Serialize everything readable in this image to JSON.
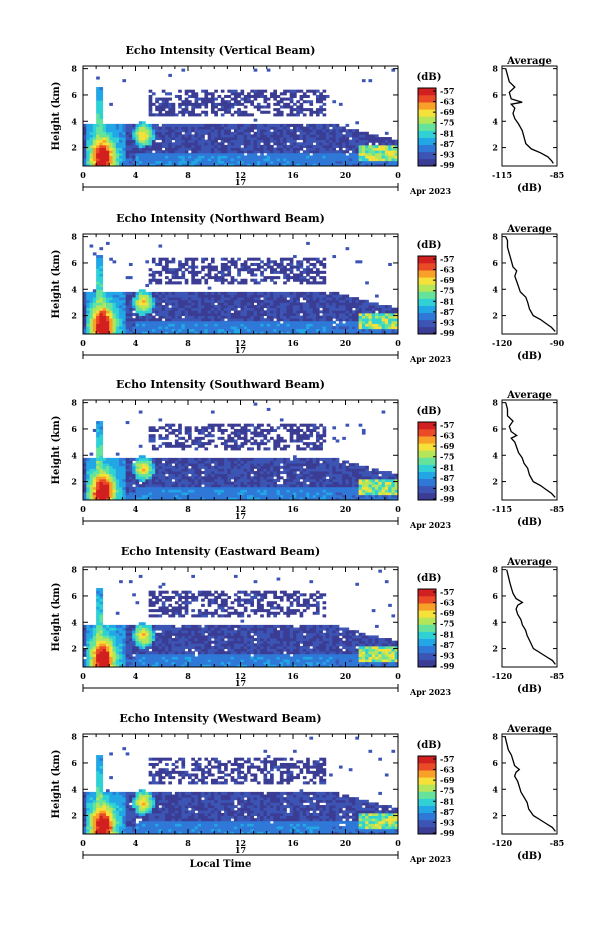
{
  "colors": {
    "colormap": [
      "#3b3c94",
      "#3c55b4",
      "#2f78d8",
      "#22a6e6",
      "#2fd1d5",
      "#66e39a",
      "#b5e65a",
      "#f5e13a",
      "#f8a028",
      "#ea4a26",
      "#d21f1f"
    ],
    "axis": "#000000"
  },
  "chart_data": [
    {
      "type": "heatmap",
      "title": "Echo Intensity (Vertical Beam)",
      "ylabel": "Height (km)",
      "xlabel": "",
      "x_ticks": [
        "0",
        "4",
        "8",
        "12",
        "16",
        "20",
        "0"
      ],
      "y_ticks": [
        "2",
        "4",
        "6",
        "8"
      ],
      "xlim": [
        0,
        24
      ],
      "ylim": [
        0.6,
        8.2
      ],
      "date_label": "17",
      "date_suffix": "Apr 2023",
      "colorbar": {
        "unit": "(dB)",
        "ticks": [
          "-57",
          "-63",
          "-69",
          "-75",
          "-81",
          "-87",
          "-93",
          "-99"
        ]
      },
      "profile": {
        "title": "Average",
        "xlabel": "(dB)",
        "x_ticks": [
          "-115",
          "-85"
        ],
        "xlim": [
          -115,
          -85
        ],
        "y_ticks": [
          "2",
          "4",
          "6",
          "8"
        ],
        "ylim": [
          0.6,
          8.2
        ],
        "points": [
          [
            -87,
            0.8
          ],
          [
            -88,
            1.0
          ],
          [
            -90,
            1.3
          ],
          [
            -94,
            1.6
          ],
          [
            -99,
            1.9
          ],
          [
            -102,
            2.3
          ],
          [
            -103,
            2.8
          ],
          [
            -104,
            3.3
          ],
          [
            -106,
            3.8
          ],
          [
            -108,
            4.2
          ],
          [
            -109,
            4.6
          ],
          [
            -108,
            5.0
          ],
          [
            -110,
            5.3
          ],
          [
            -104,
            5.45
          ],
          [
            -110,
            5.7
          ],
          [
            -111,
            6.2
          ],
          [
            -108,
            6.6
          ],
          [
            -111,
            7.0
          ],
          [
            -112,
            7.5
          ],
          [
            -113,
            8.0
          ]
        ]
      }
    },
    {
      "type": "heatmap",
      "title": "Echo Intensity (Northward Beam)",
      "ylabel": "Height (km)",
      "xlabel": "",
      "x_ticks": [
        "0",
        "4",
        "8",
        "12",
        "16",
        "20",
        "0"
      ],
      "y_ticks": [
        "2",
        "4",
        "6",
        "8"
      ],
      "xlim": [
        0,
        24
      ],
      "ylim": [
        0.6,
        8.2
      ],
      "date_label": "17",
      "date_suffix": "Apr 2023",
      "colorbar": {
        "unit": "(dB)",
        "ticks": [
          "-57",
          "-63",
          "-69",
          "-75",
          "-81",
          "-87",
          "-93",
          "-99"
        ]
      },
      "profile": {
        "title": "Average",
        "xlabel": "(dB)",
        "x_ticks": [
          "-120",
          "-90"
        ],
        "xlim": [
          -120,
          -90
        ],
        "y_ticks": [
          "2",
          "4",
          "6",
          "8"
        ],
        "ylim": [
          0.6,
          8.2
        ],
        "points": [
          [
            -91,
            0.8
          ],
          [
            -93,
            1.1
          ],
          [
            -96,
            1.4
          ],
          [
            -99,
            1.7
          ],
          [
            -103,
            2.0
          ],
          [
            -105,
            2.5
          ],
          [
            -106,
            3.0
          ],
          [
            -107,
            3.4
          ],
          [
            -110,
            3.8
          ],
          [
            -111,
            4.2
          ],
          [
            -112,
            4.6
          ],
          [
            -113,
            5.0
          ],
          [
            -112,
            5.4
          ],
          [
            -114,
            5.7
          ],
          [
            -115,
            6.2
          ],
          [
            -116,
            6.7
          ],
          [
            -117,
            7.2
          ],
          [
            -117,
            7.7
          ],
          [
            -118,
            8.0
          ]
        ]
      }
    },
    {
      "type": "heatmap",
      "title": "Echo Intensity (Southward Beam)",
      "ylabel": "Height (km)",
      "xlabel": "",
      "x_ticks": [
        "0",
        "4",
        "8",
        "12",
        "16",
        "20",
        "0"
      ],
      "y_ticks": [
        "2",
        "4",
        "6",
        "8"
      ],
      "xlim": [
        0,
        24
      ],
      "ylim": [
        0.6,
        8.2
      ],
      "date_label": "17",
      "date_suffix": "Apr 2023",
      "colorbar": {
        "unit": "(dB)",
        "ticks": [
          "-57",
          "-63",
          "-69",
          "-75",
          "-81",
          "-87",
          "-93",
          "-99"
        ]
      },
      "profile": {
        "title": "Average",
        "xlabel": "(dB)",
        "x_ticks": [
          "-115",
          "-85"
        ],
        "xlim": [
          -115,
          -85
        ],
        "y_ticks": [
          "2",
          "4",
          "6",
          "8"
        ],
        "ylim": [
          0.6,
          8.2
        ],
        "points": [
          [
            -86,
            0.8
          ],
          [
            -88,
            1.1
          ],
          [
            -91,
            1.4
          ],
          [
            -94,
            1.7
          ],
          [
            -98,
            2.0
          ],
          [
            -100,
            2.5
          ],
          [
            -101,
            3.0
          ],
          [
            -103,
            3.4
          ],
          [
            -104,
            3.8
          ],
          [
            -106,
            4.2
          ],
          [
            -107,
            4.6
          ],
          [
            -108,
            5.0
          ],
          [
            -110,
            5.3
          ],
          [
            -107,
            5.5
          ],
          [
            -110,
            5.8
          ],
          [
            -111,
            6.2
          ],
          [
            -109,
            6.6
          ],
          [
            -112,
            7.0
          ],
          [
            -112,
            7.5
          ],
          [
            -113,
            8.0
          ]
        ]
      }
    },
    {
      "type": "heatmap",
      "title": "Echo Intensity (Eastward Beam)",
      "ylabel": "Height (km)",
      "xlabel": "",
      "x_ticks": [
        "0",
        "4",
        "8",
        "12",
        "16",
        "20",
        "0"
      ],
      "y_ticks": [
        "2",
        "4",
        "6",
        "8"
      ],
      "xlim": [
        0,
        24
      ],
      "ylim": [
        0.6,
        8.2
      ],
      "date_label": "17",
      "date_suffix": "Apr 2023",
      "colorbar": {
        "unit": "(dB)",
        "ticks": [
          "-57",
          "-63",
          "-69",
          "-75",
          "-81",
          "-87",
          "-93",
          "-99"
        ]
      },
      "profile": {
        "title": "Average",
        "xlabel": "(dB)",
        "x_ticks": [
          "-120",
          "-85"
        ],
        "xlim": [
          -120,
          -85
        ],
        "y_ticks": [
          "2",
          "4",
          "6",
          "8"
        ],
        "ylim": [
          0.6,
          8.2
        ],
        "points": [
          [
            -86,
            0.8
          ],
          [
            -88,
            1.1
          ],
          [
            -92,
            1.4
          ],
          [
            -96,
            1.7
          ],
          [
            -100,
            2.0
          ],
          [
            -102,
            2.5
          ],
          [
            -104,
            3.0
          ],
          [
            -105,
            3.4
          ],
          [
            -107,
            3.8
          ],
          [
            -108,
            4.2
          ],
          [
            -110,
            4.6
          ],
          [
            -111,
            5.0
          ],
          [
            -110,
            5.3
          ],
          [
            -107,
            5.5
          ],
          [
            -111,
            5.8
          ],
          [
            -113,
            6.2
          ],
          [
            -114,
            6.6
          ],
          [
            -115,
            7.0
          ],
          [
            -116,
            7.5
          ],
          [
            -117,
            8.0
          ]
        ]
      }
    },
    {
      "type": "heatmap",
      "title": "Echo Intensity (Westward Beam)",
      "ylabel": "Height (km)",
      "xlabel": "Local Time",
      "x_ticks": [
        "0",
        "4",
        "8",
        "12",
        "16",
        "20",
        "0"
      ],
      "y_ticks": [
        "2",
        "4",
        "6",
        "8"
      ],
      "xlim": [
        0,
        24
      ],
      "ylim": [
        0.6,
        8.2
      ],
      "date_label": "17",
      "date_suffix": "Apr 2023",
      "colorbar": {
        "unit": "(dB)",
        "ticks": [
          "-57",
          "-63",
          "-69",
          "-75",
          "-81",
          "-87",
          "-93",
          "-99"
        ]
      },
      "profile": {
        "title": "Average",
        "xlabel": "(dB)",
        "x_ticks": [
          "-120",
          "-85"
        ],
        "xlim": [
          -120,
          -85
        ],
        "y_ticks": [
          "2",
          "4",
          "6",
          "8"
        ],
        "ylim": [
          0.6,
          8.2
        ],
        "points": [
          [
            -86,
            0.8
          ],
          [
            -88,
            1.1
          ],
          [
            -92,
            1.4
          ],
          [
            -96,
            1.7
          ],
          [
            -100,
            2.0
          ],
          [
            -103,
            2.5
          ],
          [
            -104,
            3.0
          ],
          [
            -106,
            3.4
          ],
          [
            -108,
            3.8
          ],
          [
            -109,
            4.2
          ],
          [
            -110,
            4.6
          ],
          [
            -112,
            5.0
          ],
          [
            -111,
            5.3
          ],
          [
            -109,
            5.5
          ],
          [
            -112,
            5.8
          ],
          [
            -113,
            6.2
          ],
          [
            -114,
            6.6
          ],
          [
            -116,
            7.0
          ],
          [
            -117,
            7.5
          ],
          [
            -118,
            8.0
          ]
        ]
      }
    }
  ]
}
